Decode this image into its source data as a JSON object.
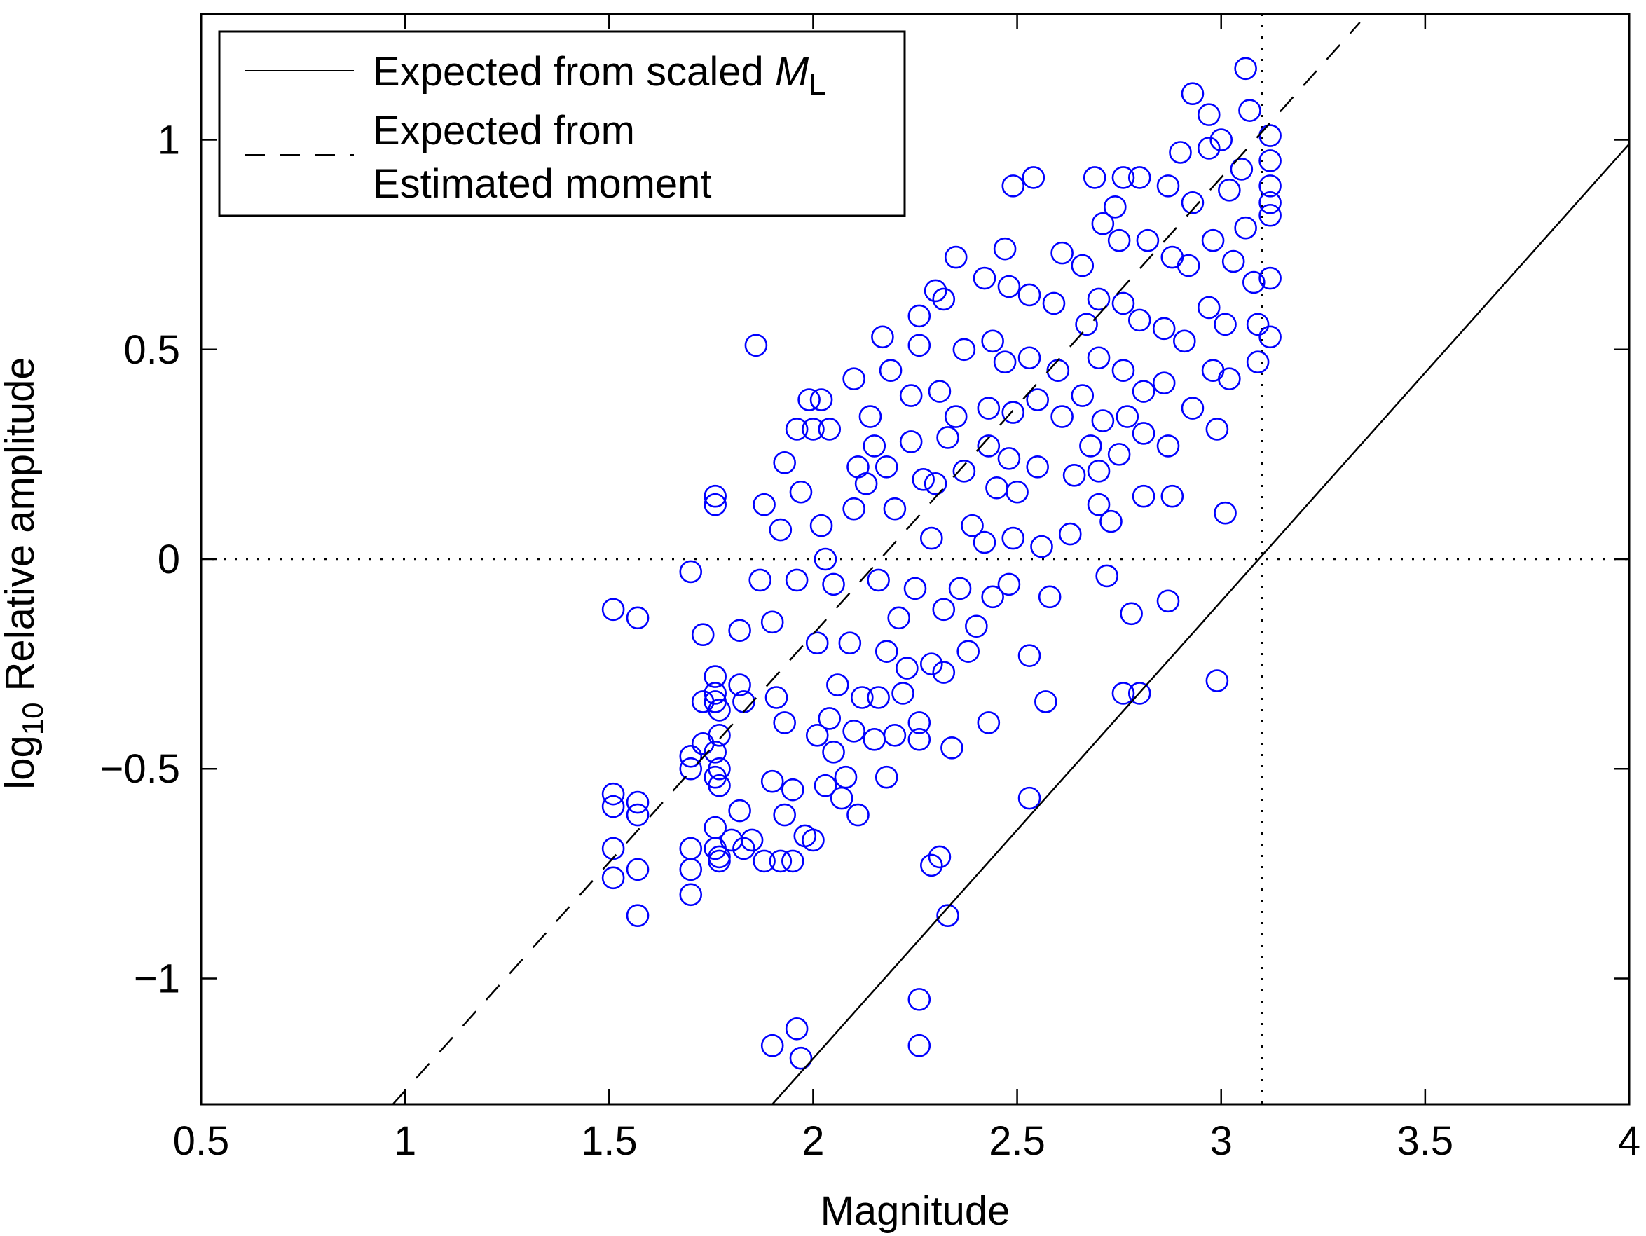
{
  "chart_data": {
    "type": "scatter",
    "xlabel": "Magnitude",
    "ylabel": {
      "prefix": "log",
      "subscript": "10",
      "text": " Relative amplitude"
    },
    "xlim": [
      0.5,
      4
    ],
    "ylim": [
      -1.3,
      1.3
    ],
    "xticks": [
      0.5,
      1,
      1.5,
      2,
      2.5,
      3,
      3.5,
      4
    ],
    "xtick_labels": [
      "0.5",
      "1",
      "1.5",
      "2",
      "2.5",
      "3",
      "3.5",
      "4"
    ],
    "yticks": [
      1,
      0.5,
      0,
      -0.5,
      -1
    ],
    "ytick_labels": [
      "1",
      "0.5",
      "0",
      "−0.5",
      "−1"
    ],
    "grid": false,
    "legend_position": "top-left",
    "reference_lines": {
      "vertical_dotted_x": 3.1,
      "horizontal_dotted_y": 0
    },
    "lines": [
      {
        "name": "Expected from scaled M_L",
        "style": "solid",
        "color": "#000000",
        "x": [
          1.9,
          4.0
        ],
        "y": [
          -1.3,
          0.99
        ]
      },
      {
        "name": "Expected from Estimated moment",
        "style": "dashed",
        "color": "#000000",
        "x": [
          0.97,
          3.34
        ],
        "y": [
          -1.3,
          1.28
        ]
      }
    ],
    "series": [
      {
        "marker": "circle-open",
        "color": "#0000ff",
        "points": [
          [
            1.51,
            -0.12
          ],
          [
            1.57,
            -0.14
          ],
          [
            1.51,
            -0.56
          ],
          [
            1.51,
            -0.59
          ],
          [
            1.57,
            -0.58
          ],
          [
            1.57,
            -0.61
          ],
          [
            1.51,
            -0.69
          ],
          [
            1.51,
            -0.76
          ],
          [
            1.57,
            -0.74
          ],
          [
            1.57,
            -0.85
          ],
          [
            1.7,
            -0.03
          ],
          [
            1.73,
            -0.18
          ],
          [
            1.7,
            -0.47
          ],
          [
            1.7,
            -0.5
          ],
          [
            1.73,
            -0.44
          ],
          [
            1.7,
            -0.69
          ],
          [
            1.7,
            -0.74
          ],
          [
            1.7,
            -0.8
          ],
          [
            1.76,
            0.15
          ],
          [
            1.76,
            0.13
          ],
          [
            1.76,
            -0.28
          ],
          [
            1.76,
            -0.32
          ],
          [
            1.76,
            -0.34
          ],
          [
            1.73,
            -0.34
          ],
          [
            1.77,
            -0.36
          ],
          [
            1.77,
            -0.42
          ],
          [
            1.76,
            -0.46
          ],
          [
            1.77,
            -0.5
          ],
          [
            1.76,
            -0.52
          ],
          [
            1.77,
            -0.54
          ],
          [
            1.76,
            -0.64
          ],
          [
            1.76,
            -0.69
          ],
          [
            1.77,
            -0.71
          ],
          [
            1.77,
            -0.72
          ],
          [
            1.8,
            -0.67
          ],
          [
            1.82,
            -0.17
          ],
          [
            1.82,
            -0.3
          ],
          [
            1.83,
            -0.34
          ],
          [
            1.82,
            -0.6
          ],
          [
            1.83,
            -0.69
          ],
          [
            1.86,
            0.51
          ],
          [
            1.88,
            0.13
          ],
          [
            1.87,
            -0.05
          ],
          [
            1.85,
            -0.67
          ],
          [
            1.88,
            -0.72
          ],
          [
            1.93,
            0.23
          ],
          [
            1.92,
            0.07
          ],
          [
            1.9,
            -0.15
          ],
          [
            1.91,
            -0.33
          ],
          [
            1.93,
            -0.39
          ],
          [
            1.9,
            -0.53
          ],
          [
            1.93,
            -0.61
          ],
          [
            1.92,
            -0.72
          ],
          [
            1.95,
            -0.72
          ],
          [
            1.96,
            0.31
          ],
          [
            1.99,
            0.38
          ],
          [
            1.97,
            0.16
          ],
          [
            1.96,
            -0.05
          ],
          [
            1.95,
            -0.55
          ],
          [
            1.98,
            -0.66
          ],
          [
            2.0,
            -0.67
          ],
          [
            1.96,
            -1.12
          ],
          [
            1.9,
            -1.16
          ],
          [
            1.97,
            -1.19
          ],
          [
            2.02,
            0.38
          ],
          [
            2.0,
            0.31
          ],
          [
            2.04,
            0.31
          ],
          [
            2.02,
            0.08
          ],
          [
            2.03,
            0.0
          ],
          [
            2.05,
            -0.06
          ],
          [
            2.01,
            -0.2
          ],
          [
            2.06,
            -0.3
          ],
          [
            2.04,
            -0.38
          ],
          [
            2.01,
            -0.42
          ],
          [
            2.05,
            -0.46
          ],
          [
            2.03,
            -0.54
          ],
          [
            2.07,
            -0.57
          ],
          [
            2.1,
            0.43
          ],
          [
            2.11,
            0.22
          ],
          [
            2.1,
            0.12
          ],
          [
            2.14,
            0.34
          ],
          [
            2.13,
            0.18
          ],
          [
            2.09,
            -0.2
          ],
          [
            2.12,
            -0.33
          ],
          [
            2.1,
            -0.41
          ],
          [
            2.08,
            -0.52
          ],
          [
            2.11,
            -0.61
          ],
          [
            2.15,
            -0.43
          ],
          [
            2.17,
            0.53
          ],
          [
            2.19,
            0.45
          ],
          [
            2.15,
            0.27
          ],
          [
            2.18,
            0.22
          ],
          [
            2.2,
            0.12
          ],
          [
            2.16,
            -0.05
          ],
          [
            2.21,
            -0.14
          ],
          [
            2.18,
            -0.22
          ],
          [
            2.16,
            -0.33
          ],
          [
            2.2,
            -0.42
          ],
          [
            2.18,
            -0.52
          ],
          [
            2.22,
            -0.32
          ],
          [
            2.24,
            0.39
          ],
          [
            2.26,
            0.58
          ],
          [
            2.26,
            0.51
          ],
          [
            2.24,
            0.28
          ],
          [
            2.27,
            0.19
          ],
          [
            2.25,
            -0.07
          ],
          [
            2.23,
            -0.26
          ],
          [
            2.26,
            -0.43
          ],
          [
            2.26,
            -0.39
          ],
          [
            2.29,
            -0.73
          ],
          [
            2.31,
            -0.71
          ],
          [
            2.26,
            -1.05
          ],
          [
            2.26,
            -1.16
          ],
          [
            2.3,
            0.64
          ],
          [
            2.32,
            0.62
          ],
          [
            2.31,
            0.4
          ],
          [
            2.33,
            0.29
          ],
          [
            2.3,
            0.18
          ],
          [
            2.29,
            0.05
          ],
          [
            2.32,
            -0.12
          ],
          [
            2.29,
            -0.25
          ],
          [
            2.32,
            -0.27
          ],
          [
            2.34,
            -0.45
          ],
          [
            2.33,
            -0.85
          ],
          [
            2.35,
            0.72
          ],
          [
            2.37,
            0.5
          ],
          [
            2.35,
            0.34
          ],
          [
            2.37,
            0.21
          ],
          [
            2.39,
            0.08
          ],
          [
            2.36,
            -0.07
          ],
          [
            2.4,
            -0.16
          ],
          [
            2.38,
            -0.22
          ],
          [
            2.42,
            0.67
          ],
          [
            2.44,
            0.52
          ],
          [
            2.43,
            0.36
          ],
          [
            2.43,
            0.27
          ],
          [
            2.45,
            0.17
          ],
          [
            2.42,
            0.04
          ],
          [
            2.44,
            -0.09
          ],
          [
            2.43,
            -0.39
          ],
          [
            2.47,
            0.74
          ],
          [
            2.48,
            0.65
          ],
          [
            2.47,
            0.47
          ],
          [
            2.49,
            0.35
          ],
          [
            2.48,
            0.24
          ],
          [
            2.5,
            0.16
          ],
          [
            2.49,
            0.05
          ],
          [
            2.48,
            -0.06
          ],
          [
            2.49,
            0.89
          ],
          [
            2.54,
            0.91
          ],
          [
            2.53,
            0.63
          ],
          [
            2.53,
            0.48
          ],
          [
            2.55,
            0.38
          ],
          [
            2.55,
            0.22
          ],
          [
            2.56,
            0.03
          ],
          [
            2.58,
            -0.09
          ],
          [
            2.53,
            -0.23
          ],
          [
            2.57,
            -0.34
          ],
          [
            2.53,
            -0.57
          ],
          [
            2.61,
            0.73
          ],
          [
            2.59,
            0.61
          ],
          [
            2.6,
            0.45
          ],
          [
            2.61,
            0.34
          ],
          [
            2.64,
            0.2
          ],
          [
            2.63,
            0.06
          ],
          [
            2.66,
            0.7
          ],
          [
            2.67,
            0.56
          ],
          [
            2.66,
            0.39
          ],
          [
            2.68,
            0.27
          ],
          [
            2.69,
            0.91
          ],
          [
            2.71,
            0.8
          ],
          [
            2.7,
            0.62
          ],
          [
            2.7,
            0.48
          ],
          [
            2.71,
            0.33
          ],
          [
            2.7,
            0.21
          ],
          [
            2.7,
            0.13
          ],
          [
            2.73,
            0.09
          ],
          [
            2.72,
            -0.04
          ],
          [
            2.76,
            0.91
          ],
          [
            2.74,
            0.84
          ],
          [
            2.75,
            0.76
          ],
          [
            2.76,
            0.61
          ],
          [
            2.76,
            0.45
          ],
          [
            2.77,
            0.34
          ],
          [
            2.75,
            0.25
          ],
          [
            2.76,
            -0.32
          ],
          [
            2.8,
            0.91
          ],
          [
            2.82,
            0.76
          ],
          [
            2.8,
            0.57
          ],
          [
            2.81,
            0.4
          ],
          [
            2.81,
            0.3
          ],
          [
            2.8,
            -0.32
          ],
          [
            2.78,
            -0.13
          ],
          [
            2.81,
            0.15
          ],
          [
            2.87,
            0.89
          ],
          [
            2.88,
            0.72
          ],
          [
            2.86,
            0.55
          ],
          [
            2.86,
            0.42
          ],
          [
            2.87,
            0.27
          ],
          [
            2.88,
            0.15
          ],
          [
            2.87,
            -0.1
          ],
          [
            2.93,
            1.11
          ],
          [
            2.9,
            0.97
          ],
          [
            2.93,
            0.85
          ],
          [
            2.92,
            0.7
          ],
          [
            2.91,
            0.52
          ],
          [
            2.93,
            0.36
          ],
          [
            2.97,
            1.06
          ],
          [
            2.97,
            0.98
          ],
          [
            2.98,
            0.76
          ],
          [
            2.97,
            0.6
          ],
          [
            2.98,
            0.45
          ],
          [
            2.99,
            0.31
          ],
          [
            2.99,
            -0.29
          ],
          [
            3.01,
            0.11
          ],
          [
            3.0,
            1.0
          ],
          [
            3.02,
            0.88
          ],
          [
            3.03,
            0.71
          ],
          [
            3.01,
            0.56
          ],
          [
            3.02,
            0.43
          ],
          [
            3.06,
            1.17
          ],
          [
            3.07,
            1.07
          ],
          [
            3.05,
            0.93
          ],
          [
            3.06,
            0.79
          ],
          [
            3.08,
            0.66
          ],
          [
            3.09,
            0.56
          ],
          [
            3.09,
            0.47
          ],
          [
            3.12,
            1.01
          ],
          [
            3.12,
            0.95
          ],
          [
            3.12,
            0.89
          ],
          [
            3.12,
            0.85
          ],
          [
            3.12,
            0.82
          ],
          [
            3.12,
            0.67
          ],
          [
            3.12,
            0.53
          ]
        ]
      }
    ]
  },
  "legend": {
    "entries": [
      {
        "style": "solid",
        "lines": [
          {
            "text": "Expected from scaled ",
            "italic_part": "M",
            "subscript": "L"
          }
        ]
      },
      {
        "style": "dashed",
        "lines": [
          {
            "text": "Expected from"
          },
          {
            "text": "Estimated moment"
          }
        ]
      }
    ]
  }
}
